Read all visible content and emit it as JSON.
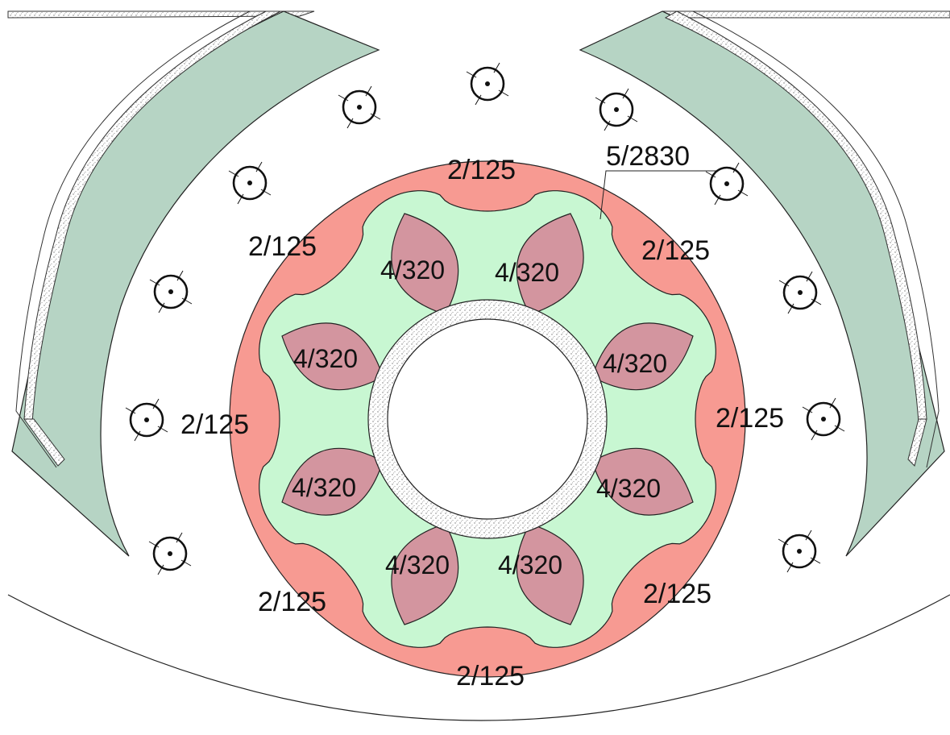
{
  "colors": {
    "outer_ring": "#f79a92",
    "flower": "#c8f7d2",
    "petal": "#d3959f",
    "sweep_band": "#b6d4c4",
    "stroke": "#222222",
    "gravel": "#cfcfcf"
  },
  "center_ring_labels": [
    "2/125",
    "2/125",
    "2/125",
    "2/125",
    "2/125",
    "2/125",
    "2/125"
  ],
  "left_tree_label": "2/125",
  "callout_label": "5/2830",
  "petal_labels": [
    "4/320",
    "4/320",
    "4/320",
    "4/320",
    "4/320",
    "4/320",
    "4/320",
    "4/320"
  ],
  "tree_symbol": "tree-circle-icon"
}
